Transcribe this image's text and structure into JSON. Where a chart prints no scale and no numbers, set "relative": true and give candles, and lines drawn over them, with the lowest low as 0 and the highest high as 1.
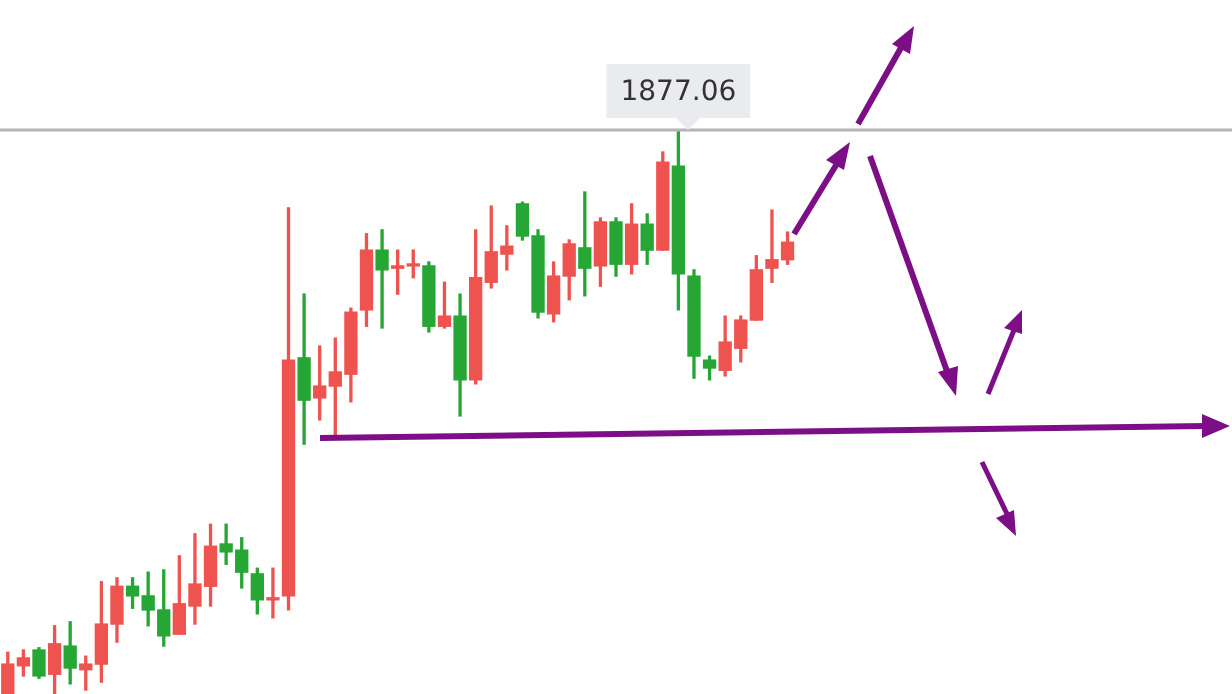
{
  "chart_data": {
    "type": "candlestick",
    "relative": true,
    "categories": [
      null,
      null,
      null,
      null,
      null,
      null,
      null,
      null,
      null,
      null,
      null,
      null,
      null,
      null,
      null,
      null,
      null,
      null,
      null,
      null,
      null,
      null,
      null,
      null,
      null,
      null,
      null,
      null,
      null,
      null,
      null,
      null,
      null,
      null,
      null,
      null,
      null,
      null,
      null,
      null,
      null,
      null,
      null,
      null,
      null,
      null,
      null,
      null,
      null,
      null,
      null,
      null,
      null,
      null,
      null,
      null,
      null,
      null,
      null,
      null,
      null,
      null,
      null,
      null,
      null,
      null,
      null,
      null,
      null,
      null,
      null,
      null,
      null,
      null,
      null,
      null,
      null,
      null,
      null
    ],
    "ohlc": [
      [
        0,
        0.074,
        0,
        0.053
      ],
      [
        0.05,
        0.078,
        0.032,
        0.064
      ],
      [
        0.078,
        0.082,
        0.028,
        0.032
      ],
      [
        0.035,
        0.121,
        0,
        0.089
      ],
      [
        0.085,
        0.128,
        0.018,
        0.046
      ],
      [
        0.043,
        0.067,
        0.007,
        0.053
      ],
      [
        0.053,
        0.199,
        0.021,
        0.124
      ],
      [
        0.124,
        0.206,
        0.092,
        0.191
      ],
      [
        0.191,
        0.206,
        0.152,
        0.174
      ],
      [
        0.174,
        0.216,
        0.121,
        0.149
      ],
      [
        0.149,
        0.22,
        0.085,
        0.103
      ],
      [
        0.106,
        0.245,
        0.106,
        0.16
      ],
      [
        0.156,
        0.284,
        0.124,
        0.195
      ],
      [
        0.191,
        0.301,
        0.156,
        0.262
      ],
      [
        0.266,
        0.301,
        0.23,
        0.252
      ],
      [
        0.255,
        0.277,
        0.188,
        0.216
      ],
      [
        0.213,
        0.223,
        0.142,
        0.167
      ],
      [
        0.167,
        0.223,
        0.135,
        0.17
      ],
      [
        0.174,
        0.862,
        0.149,
        0.592
      ],
      [
        0.596,
        0.709,
        0.443,
        0.521
      ],
      [
        0.525,
        0.617,
        0.486,
        0.546
      ],
      [
        0.546,
        0.631,
        0.457,
        0.571
      ],
      [
        0.567,
        0.684,
        0.518,
        0.677
      ],
      [
        0.681,
        0.816,
        0.652,
        0.787
      ],
      [
        0.787,
        0.823,
        0.649,
        0.752
      ],
      [
        0.755,
        0.787,
        0.709,
        0.759
      ],
      [
        0.759,
        0.787,
        0.738,
        0.762
      ],
      [
        0.759,
        0.766,
        0.642,
        0.652
      ],
      [
        0.652,
        0.73,
        0.649,
        0.67
      ],
      [
        0.67,
        0.709,
        0.493,
        0.557
      ],
      [
        0.557,
        0.823,
        0.55,
        0.738
      ],
      [
        0.73,
        0.865,
        0.72,
        0.784
      ],
      [
        0.78,
        0.83,
        0.752,
        0.794
      ],
      [
        0.869,
        0.872,
        0.805,
        0.812
      ],
      [
        0.812,
        0.823,
        0.667,
        0.677
      ],
      [
        0.674,
        0.766,
        0.66,
        0.741
      ],
      [
        0.741,
        0.805,
        0.699,
        0.798
      ],
      [
        0.791,
        0.89,
        0.706,
        0.755
      ],
      [
        0.759,
        0.844,
        0.723,
        0.837
      ],
      [
        0.837,
        0.844,
        0.741,
        0.762
      ],
      [
        0.762,
        0.869,
        0.745,
        0.833
      ],
      [
        0.833,
        0.851,
        0.762,
        0.787
      ],
      [
        0.787,
        0.961,
        0.787,
        0.943
      ],
      [
        0.936,
        1,
        0.681,
        0.745
      ],
      [
        0.741,
        0.752,
        0.56,
        0.599
      ],
      [
        0.592,
        0.599,
        0.557,
        0.578
      ],
      [
        0.574,
        0.67,
        0.564,
        0.624
      ],
      [
        0.613,
        0.67,
        0.589,
        0.663
      ],
      [
        0.663,
        0.777,
        0.663,
        0.752
      ],
      [
        0.755,
        0.858,
        0.73,
        0.77
      ],
      [
        0.77,
        0.819,
        0.762,
        0.801
      ],
      null,
      null,
      null,
      null,
      null,
      null,
      null,
      null,
      null,
      null,
      null,
      null,
      null,
      null,
      null,
      null,
      null,
      null,
      null,
      null,
      null,
      null,
      null,
      null,
      null,
      null,
      null,
      null
    ],
    "colors": [
      "#ef5350",
      "#ef5350",
      "#26a634",
      "#ef5350",
      "#26a634",
      "#ef5350",
      "#ef5350",
      "#ef5350",
      "#26a634",
      "#26a634",
      "#26a634",
      "#ef5350",
      "#ef5350",
      "#ef5350",
      "#26a634",
      "#26a634",
      "#26a634",
      "#ef5350",
      "#ef5350",
      "#26a634",
      "#ef5350",
      "#ef5350",
      "#ef5350",
      "#ef5350",
      "#26a634",
      "#ef5350",
      "#ef5350",
      "#26a634",
      "#ef5350",
      "#26a634",
      "#ef5350",
      "#ef5350",
      "#ef5350",
      "#26a634",
      "#26a634",
      "#ef5350",
      "#ef5350",
      "#26a634",
      "#ef5350",
      "#26a634",
      "#ef5350",
      "#26a634",
      "#ef5350",
      "#26a634",
      "#26a634",
      "#26a634",
      "#ef5350",
      "#ef5350",
      "#ef5350",
      "#ef5350",
      "#ef5350",
      null,
      null,
      null,
      null,
      null,
      null,
      null,
      null,
      null,
      null,
      null,
      null,
      null,
      null,
      null,
      null,
      null,
      null,
      null,
      null,
      null,
      null,
      null,
      null,
      null,
      null,
      null,
      null
    ],
    "ref_lines": [
      {
        "axis": "y",
        "value": 1,
        "color": "#b4b4b4"
      }
    ],
    "annotations": [
      {
        "text": "1877.06",
        "y": 1
      }
    ]
  }
}
